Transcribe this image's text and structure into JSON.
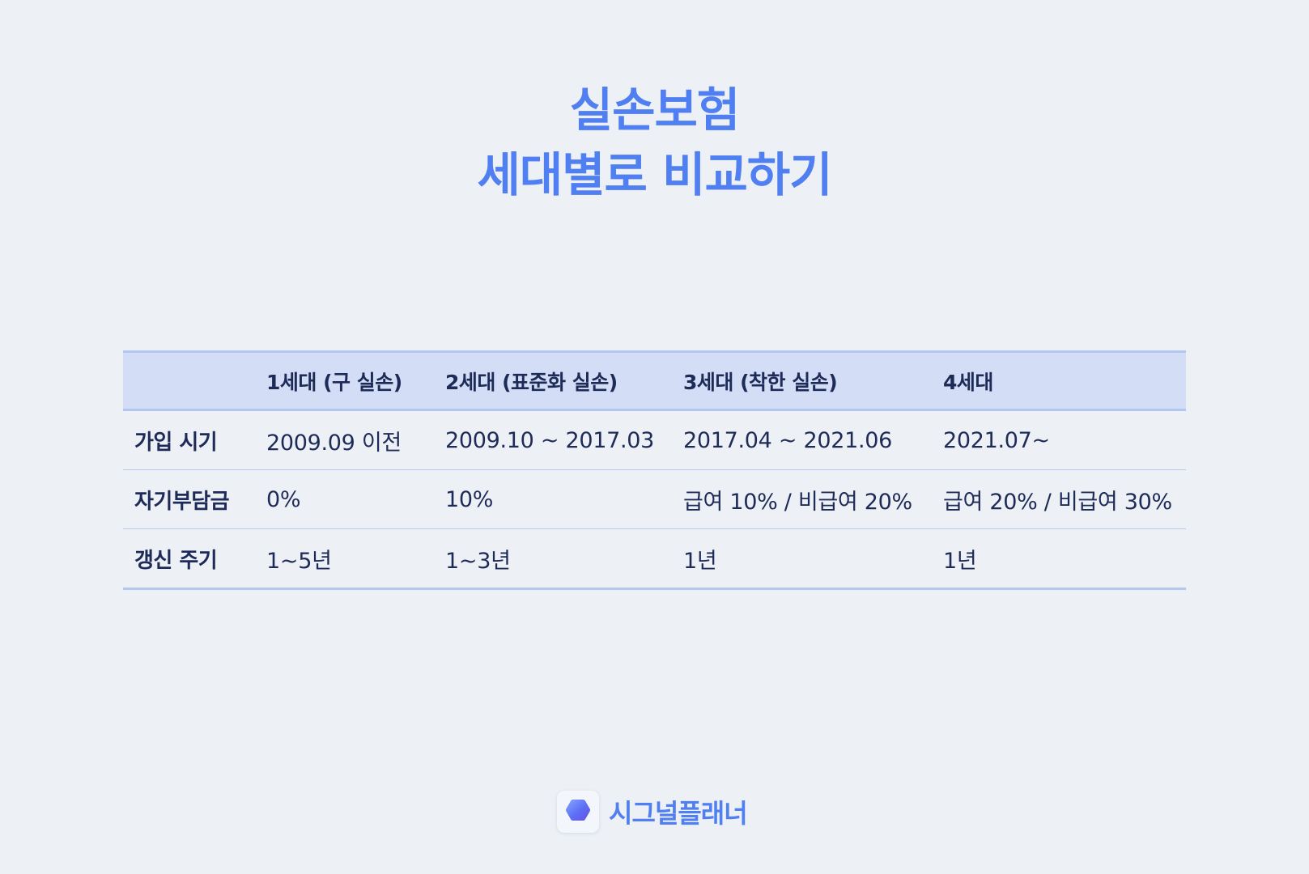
{
  "title": {
    "line1": "실손보험",
    "line2": "세대별로 비교하기"
  },
  "table": {
    "headers": [
      "",
      "1세대 (구 실손)",
      "2세대 (표준화 실손)",
      "3세대 (착한 실손)",
      "4세대"
    ],
    "rows": [
      {
        "label": "가입 시기",
        "cells": [
          "2009.09 이전",
          "2009.10 ~ 2017.03",
          "2017.04 ~ 2021.06",
          "2021.07~"
        ]
      },
      {
        "label": "자기부담금",
        "cells": [
          "0%",
          "10%",
          "급여 10% / 비급여 20%",
          "급여 20% / 비급여 30%"
        ]
      },
      {
        "label": "갱신 주기",
        "cells": [
          "1~5년",
          "1~3년",
          "1년",
          "1년"
        ]
      }
    ]
  },
  "brand": {
    "name": "시그널플래너",
    "icon": "hexagon-logo-icon"
  },
  "colors": {
    "accent": "#4f7ff0",
    "header_bg": "#d3def6",
    "text": "#1e2a57",
    "background": "#edf1f5"
  }
}
